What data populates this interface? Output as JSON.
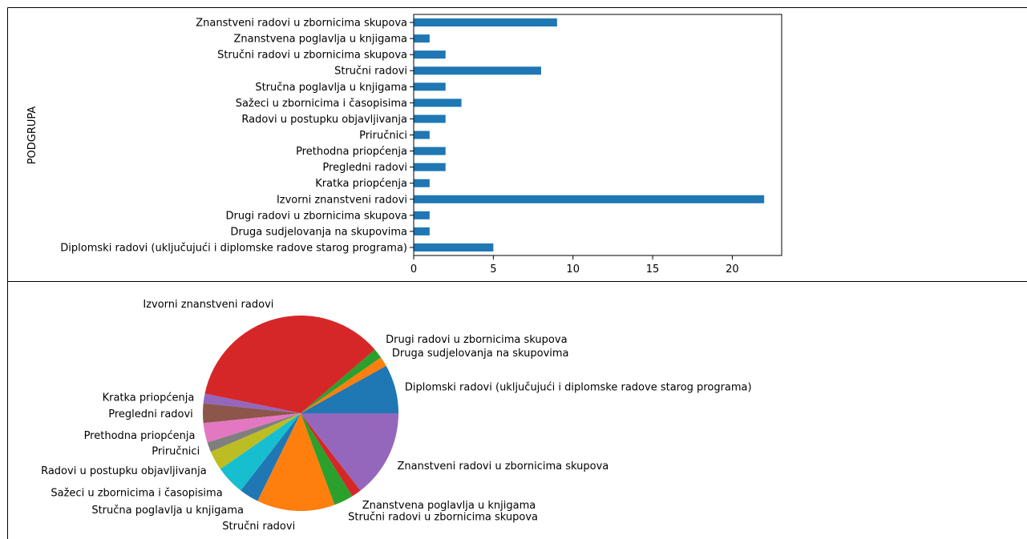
{
  "chart_data": [
    {
      "type": "bar",
      "orientation": "horizontal",
      "ylabel": "PODGRUPA",
      "xlabel": "",
      "xlim": [
        0,
        23.1
      ],
      "xticks": [
        0,
        5,
        10,
        15,
        20
      ],
      "bar_color": "#1f77b4",
      "categories": [
        "Znanstveni radovi u zbornicima skupova",
        "Znanstvena poglavlja u knjigama",
        "Stručni radovi u zbornicima skupova",
        "Stručni radovi",
        "Stručna poglavlja u knjigama",
        "Sažeci u zbornicima i časopisima",
        "Radovi u postupku objavljivanja",
        "Priručnici",
        "Prethodna priopćenja",
        "Pregledni radovi",
        "Kratka priopćenja",
        "Izvorni znanstveni radovi",
        "Drugi radovi u zbornicima skupova",
        "Druga sudjelovanja na skupovima",
        "Diplomski radovi (uključujući i diplomske radove starog programa)"
      ],
      "values": [
        9,
        1,
        2,
        8,
        2,
        3,
        2,
        1,
        2,
        2,
        1,
        22,
        1,
        1,
        5
      ]
    },
    {
      "type": "pie",
      "start_angle_deg": 0,
      "direction": "counterclockwise",
      "labels": [
        "Diplomski radovi (uključujući i diplomske radove starog programa)",
        "Druga sudjelovanja na skupovima",
        "Drugi radovi u zbornicima skupova",
        "Izvorni znanstveni radovi",
        "Kratka priopćenja",
        "Pregledni radovi",
        "Prethodna priopćenja",
        "Priručnici",
        "Radovi u postupku objavljivanja",
        "Sažeci u zbornicima i časopisima",
        "Stručna poglavlja u knjigama",
        "Stručni radovi",
        "Stručni radovi u zbornicima skupova",
        "Znanstvena poglavlja u knjigama",
        "Znanstveni radovi u zbornicima skupova"
      ],
      "values": [
        5,
        1,
        1,
        22,
        1,
        2,
        2,
        1,
        2,
        3,
        2,
        8,
        2,
        1,
        9
      ],
      "colors": [
        "#1f77b4",
        "#ff7f0e",
        "#2ca02c",
        "#d62728",
        "#9467bd",
        "#8c564b",
        "#e377c2",
        "#7f7f7f",
        "#bcbd22",
        "#17becf",
        "#1f77b4",
        "#ff7f0e",
        "#2ca02c",
        "#d62728",
        "#9467bd"
      ]
    }
  ]
}
